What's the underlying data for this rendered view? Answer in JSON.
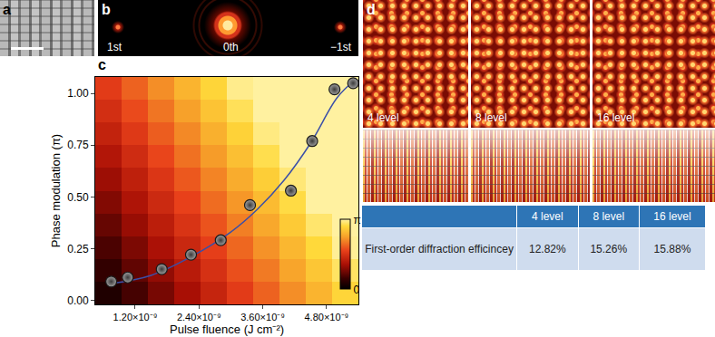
{
  "chart_data": {
    "type": "scatter",
    "x_label": "Pulse fluence (J cm⁻²)",
    "y_label": "Phase modulation (π)",
    "xlim": [
      4.5e-10,
      5.4e-09
    ],
    "xticks": [
      {
        "value": 1.2e-09,
        "label": "1.20×10⁻⁹"
      },
      {
        "value": 2.4e-09,
        "label": "2.40×10⁻⁹"
      },
      {
        "value": 3.6e-09,
        "label": "3.60×10⁻⁹"
      },
      {
        "value": 4.8e-09,
        "label": "4.80×10⁻⁹"
      }
    ],
    "ylim": [
      -0.02,
      1.08
    ],
    "yticks": [
      {
        "value": 0,
        "label": "0.00"
      },
      {
        "value": 0.25,
        "label": "0.25"
      },
      {
        "value": 0.5,
        "label": "0.50"
      },
      {
        "value": 0.75,
        "label": "0.75"
      },
      {
        "value": 1,
        "label": "1.00"
      }
    ],
    "grid": false,
    "series": [
      {
        "type": "line",
        "line_style": "solid",
        "color": "#3b4fa8",
        "x": [
          7.5e-10,
          1.5e-09,
          2.25e-09,
          3e-09,
          3.5e-09,
          4e-09,
          4.5e-09,
          5e-09,
          5.35e-09
        ],
        "values": [
          0.08,
          0.12,
          0.21,
          0.33,
          0.44,
          0.58,
          0.76,
          0.98,
          1.07
        ]
      },
      {
        "type": "scatter",
        "marker": "circle",
        "color": "#a0a0a0",
        "x": [
          7.5e-10,
          1.06e-09,
          1.7e-09,
          2.25e-09,
          2.81e-09,
          3.36e-09,
          4.13e-09,
          4.53e-09,
          4.95e-09,
          5.3e-09
        ],
        "values": [
          0.09,
          0.11,
          0.15,
          0.22,
          0.29,
          0.46,
          0.53,
          0.77,
          1.02,
          1.05
        ]
      }
    ],
    "heatmap": {
      "x_edges": [
        4.5e-10,
        9.45e-10,
        1.44e-09,
        1.935e-09,
        2.43e-09,
        2.925e-09,
        3.42e-09,
        3.915e-09,
        4.41e-09,
        4.905e-09,
        5.4e-09
      ],
      "y_edges": [
        -0.02,
        0.09,
        0.2,
        0.31,
        0.42,
        0.53,
        0.64,
        0.75,
        0.86,
        0.97,
        1.08
      ],
      "z": [
        [
          0.08,
          0.17,
          0.26,
          0.35,
          0.44,
          0.53,
          0.62,
          0.71,
          0.8,
          0.89
        ],
        [
          0.13,
          0.22,
          0.31,
          0.4,
          0.49,
          0.58,
          0.67,
          0.76,
          0.85,
          0.94
        ],
        [
          0.18,
          0.27,
          0.36,
          0.45,
          0.54,
          0.63,
          0.72,
          0.81,
          0.9,
          0.99
        ],
        [
          0.23,
          0.32,
          0.41,
          0.5,
          0.59,
          0.68,
          0.77,
          0.86,
          0.95,
          1
        ],
        [
          0.28,
          0.37,
          0.46,
          0.55,
          0.64,
          0.73,
          0.82,
          0.91,
          1,
          1
        ],
        [
          0.33,
          0.42,
          0.51,
          0.6,
          0.69,
          0.78,
          0.87,
          0.96,
          1,
          1
        ],
        [
          0.38,
          0.47,
          0.56,
          0.65,
          0.74,
          0.83,
          0.92,
          1,
          1,
          1
        ],
        [
          0.43,
          0.52,
          0.61,
          0.7,
          0.79,
          0.88,
          0.97,
          1,
          1,
          1
        ],
        [
          0.48,
          0.57,
          0.66,
          0.75,
          0.84,
          0.93,
          1,
          1,
          1,
          1
        ],
        [
          0.53,
          0.62,
          0.71,
          0.8,
          0.89,
          0.98,
          1,
          1,
          1,
          1
        ]
      ],
      "zlim": [
        0,
        1
      ],
      "colorbar_ticks": [
        0,
        {
          "value": 1,
          "label": "π"
        }
      ]
    }
  },
  "panel_labels": [
    "a",
    "b",
    "c",
    "d"
  ],
  "diffraction_orders": [
    "1st",
    "0th",
    "−1st"
  ],
  "phase_levels": [
    "4 level",
    "8 level",
    "16 level"
  ],
  "table": {
    "columns": [
      "4 level",
      "8 level",
      "16 level"
    ],
    "rows": [
      {
        "label": "First-order diffraction efficincey",
        "cells": [
          "12.82%",
          "15.26%",
          "15.88%"
        ]
      }
    ]
  }
}
